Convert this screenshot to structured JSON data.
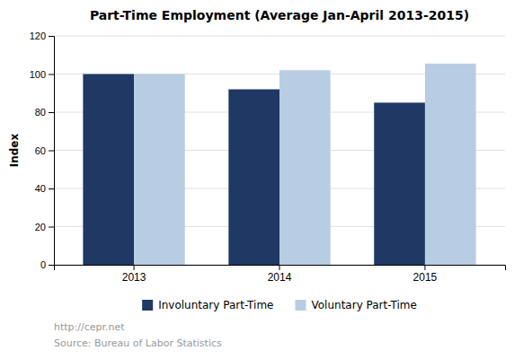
{
  "chart_data": {
    "type": "bar",
    "title": "Part-Time Employment (Average Jan-April 2013-2015)",
    "categories": [
      "2013",
      "2014",
      "2015"
    ],
    "series": [
      {
        "name": "Involuntary Part-Time",
        "color": "#1F3864",
        "values": [
          100,
          92,
          85
        ]
      },
      {
        "name": "Voluntary Part-Time",
        "color": "#B8CCE4",
        "values": [
          100,
          102,
          105.5
        ]
      }
    ],
    "ylabel": "Index",
    "ylim": [
      0,
      120
    ],
    "yticks": [
      0,
      20,
      40,
      60,
      80,
      100,
      120
    ],
    "grid": true,
    "legend": "bottom",
    "annotations": [
      "http://cepr.net",
      "Source: Bureau of Labor Statistics"
    ]
  }
}
